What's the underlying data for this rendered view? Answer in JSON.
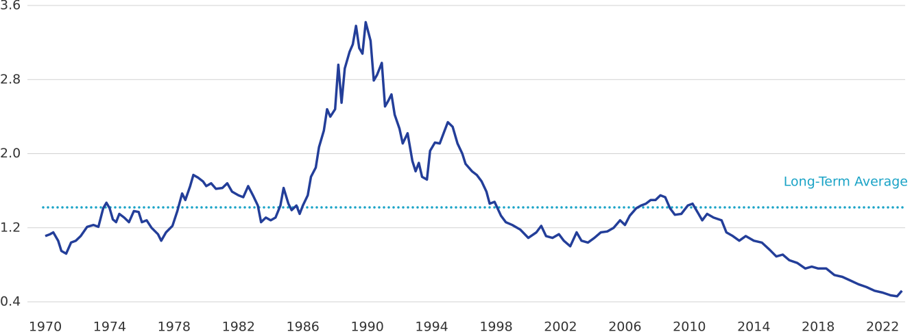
{
  "chart_data": {
    "type": "line",
    "x": [
      1970.0,
      1970.3,
      1970.5,
      1970.8,
      1971.0,
      1971.3,
      1971.6,
      1971.9,
      1972.2,
      1972.6,
      1973.0,
      1973.3,
      1973.6,
      1973.8,
      1974.0,
      1974.2,
      1974.4,
      1974.6,
      1974.9,
      1975.2,
      1975.5,
      1975.8,
      1976.0,
      1976.3,
      1976.6,
      1977.0,
      1977.2,
      1977.5,
      1977.9,
      1978.2,
      1978.5,
      1978.7,
      1979.0,
      1979.2,
      1979.5,
      1979.8,
      1980.0,
      1980.3,
      1980.6,
      1981.0,
      1981.3,
      1981.6,
      1982.0,
      1982.3,
      1982.6,
      1982.9,
      1983.2,
      1983.4,
      1983.7,
      1984.0,
      1984.3,
      1984.6,
      1984.8,
      1985.1,
      1985.3,
      1985.6,
      1985.8,
      1986.0,
      1986.3,
      1986.5,
      1986.8,
      1987.0,
      1987.3,
      1987.5,
      1987.7,
      1988.0,
      1988.2,
      1988.4,
      1988.6,
      1988.9,
      1989.1,
      1989.3,
      1989.5,
      1989.7,
      1989.9,
      1990.2,
      1990.4,
      1990.6,
      1990.9,
      1991.1,
      1991.3,
      1991.5,
      1991.7,
      1992.0,
      1992.2,
      1992.5,
      1992.8,
      1993.0,
      1993.2,
      1993.4,
      1993.7,
      1993.9,
      1994.2,
      1994.5,
      1994.8,
      1995.0,
      1995.3,
      1995.6,
      1995.9,
      1996.1,
      1996.5,
      1996.8,
      1997.1,
      1997.4,
      1997.6,
      1997.9,
      1998.3,
      1998.6,
      1999.0,
      1999.5,
      2000.0,
      2000.5,
      2000.8,
      2001.1,
      2001.5,
      2001.9,
      2002.2,
      2002.6,
      2003.0,
      2003.3,
      2003.7,
      2004.1,
      2004.5,
      2004.9,
      2005.3,
      2005.7,
      2006.0,
      2006.3,
      2006.7,
      2007.0,
      2007.3,
      2007.6,
      2007.9,
      2008.2,
      2008.5,
      2008.8,
      2009.1,
      2009.5,
      2009.9,
      2010.2,
      2010.5,
      2010.8,
      2011.1,
      2011.5,
      2012.0,
      2012.3,
      2012.7,
      2013.1,
      2013.5,
      2014.0,
      2014.5,
      2015.0,
      2015.4,
      2015.8,
      2016.2,
      2016.7,
      2017.2,
      2017.6,
      2018.0,
      2018.5,
      2019.0,
      2019.5,
      2020.0,
      2020.5,
      2021.0,
      2021.5,
      2022.0,
      2022.5,
      2022.9,
      2023.2
    ],
    "series": [
      {
        "color": "#233e99",
        "values": [
          1.11,
          1.13,
          1.15,
          1.06,
          0.95,
          0.92,
          1.04,
          1.06,
          1.11,
          1.21,
          1.23,
          1.21,
          1.41,
          1.47,
          1.41,
          1.29,
          1.26,
          1.35,
          1.31,
          1.26,
          1.38,
          1.37,
          1.26,
          1.28,
          1.2,
          1.13,
          1.06,
          1.15,
          1.22,
          1.38,
          1.57,
          1.5,
          1.65,
          1.77,
          1.74,
          1.7,
          1.65,
          1.68,
          1.62,
          1.63,
          1.68,
          1.59,
          1.55,
          1.53,
          1.65,
          1.55,
          1.44,
          1.26,
          1.31,
          1.28,
          1.31,
          1.44,
          1.63,
          1.46,
          1.39,
          1.44,
          1.35,
          1.44,
          1.55,
          1.75,
          1.85,
          2.07,
          2.25,
          2.48,
          2.4,
          2.48,
          2.96,
          2.55,
          2.92,
          3.1,
          3.18,
          3.38,
          3.14,
          3.08,
          3.42,
          3.22,
          2.79,
          2.85,
          2.98,
          2.51,
          2.57,
          2.64,
          2.42,
          2.27,
          2.11,
          2.22,
          1.92,
          1.81,
          1.9,
          1.75,
          1.72,
          2.03,
          2.12,
          2.11,
          2.25,
          2.34,
          2.29,
          2.11,
          2.0,
          1.89,
          1.81,
          1.77,
          1.7,
          1.59,
          1.46,
          1.48,
          1.33,
          1.26,
          1.23,
          1.18,
          1.09,
          1.15,
          1.22,
          1.11,
          1.09,
          1.13,
          1.06,
          1.0,
          1.15,
          1.06,
          1.04,
          1.09,
          1.15,
          1.16,
          1.2,
          1.28,
          1.23,
          1.33,
          1.41,
          1.44,
          1.46,
          1.5,
          1.5,
          1.55,
          1.53,
          1.41,
          1.34,
          1.35,
          1.44,
          1.46,
          1.37,
          1.28,
          1.35,
          1.31,
          1.28,
          1.15,
          1.11,
          1.06,
          1.11,
          1.06,
          1.04,
          0.96,
          0.89,
          0.91,
          0.85,
          0.82,
          0.76,
          0.78,
          0.76,
          0.76,
          0.69,
          0.67,
          0.63,
          0.59,
          0.56,
          0.52,
          0.5,
          0.47,
          0.46,
          0.52
        ]
      }
    ],
    "reference_line": {
      "value": 1.42,
      "label": "Long-Term Average",
      "color": "#1aa3c6"
    },
    "xlim": [
      1970,
      2023.4
    ],
    "xticks": [
      1970,
      1974,
      1978,
      1982,
      1986,
      1990,
      1994,
      1998,
      2002,
      2006,
      2010,
      2014,
      2018,
      2022
    ],
    "ylim": [
      0.4,
      3.6
    ],
    "yticks": [
      0.4,
      1.2,
      {
        "value": 2,
        "label": "2.0"
      },
      2.8,
      3.6
    ],
    "grid": true
  }
}
